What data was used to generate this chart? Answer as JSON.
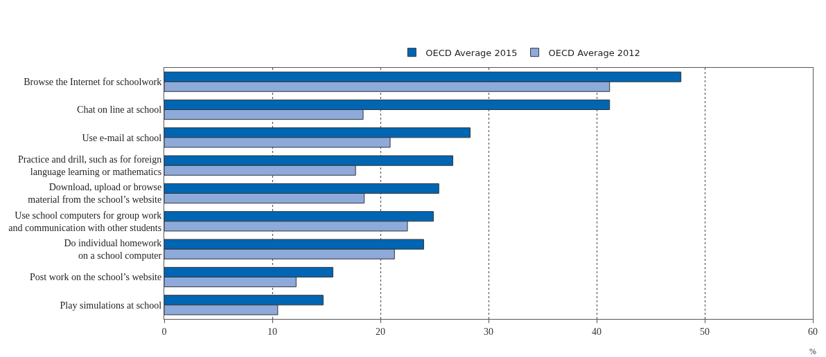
{
  "chart_data": {
    "type": "bar",
    "orientation": "horizontal",
    "categories": [
      "Browse the Internet for schoolwork",
      "Chat on line at school",
      "Use e-mail at school",
      "Practice and drill, such as for foreign\nlanguage learning or mathematics",
      "Download, upload or browse\nmaterial from the school’s website",
      "Use school computers for group work\nand communication with other students",
      "Do individual homework\non a school computer",
      "Post work on the school’s website",
      "Play simulations at school"
    ],
    "series": [
      {
        "name": "OECD Average 2015",
        "color": "#0066b3",
        "values": [
          47.8,
          41.2,
          28.3,
          26.7,
          25.4,
          24.9,
          24.0,
          15.6,
          14.7
        ]
      },
      {
        "name": "OECD Average 2012",
        "color": "#8eaadb",
        "values": [
          41.2,
          18.4,
          20.9,
          17.7,
          18.5,
          22.5,
          21.3,
          12.2,
          10.5
        ]
      }
    ],
    "xlabel": "%",
    "xlim": [
      0,
      60
    ],
    "xticks": [
      0,
      10,
      20,
      30,
      40,
      50,
      60
    ],
    "grid": "x",
    "legend": "top"
  }
}
